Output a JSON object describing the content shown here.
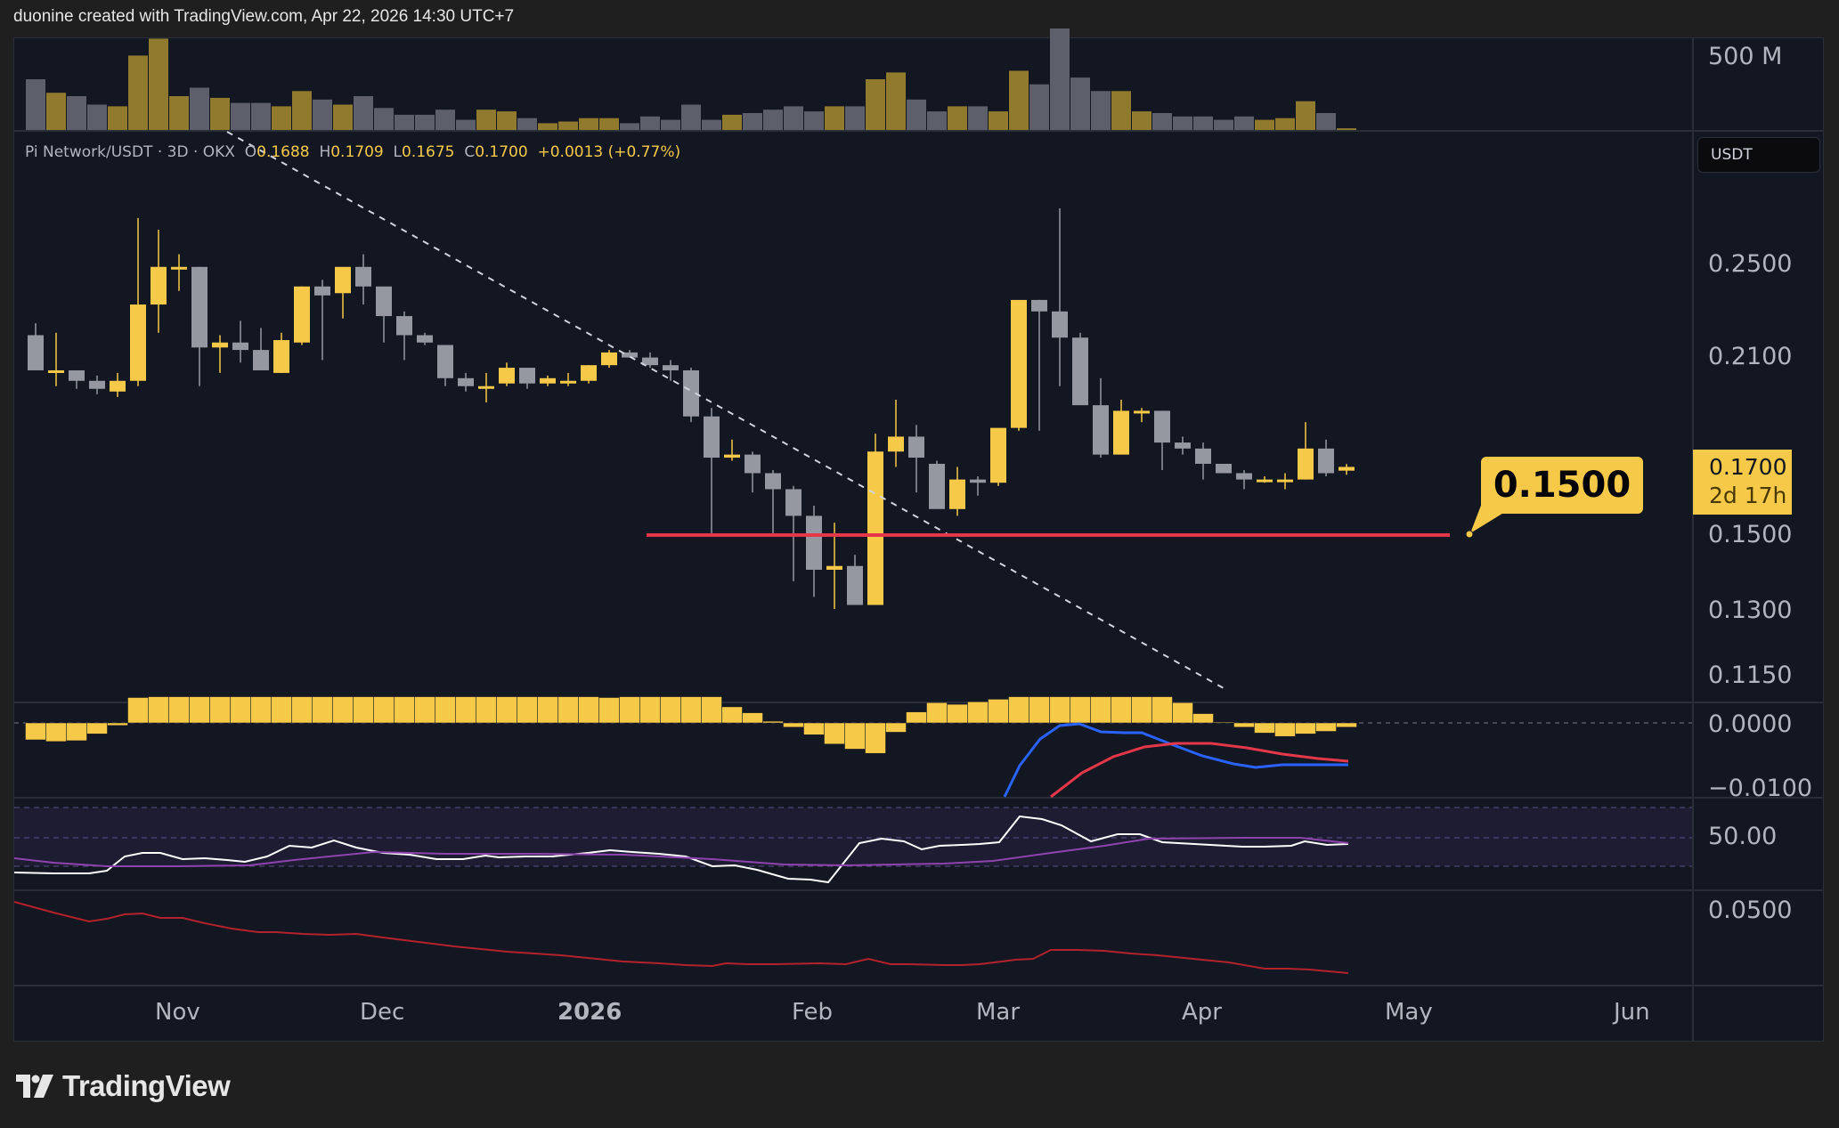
{
  "header": {
    "attribution": "duonine created with TradingView.com, Apr 22, 2026 14:30 UTC+7"
  },
  "legend": {
    "symbol": "Pi Network/USDT · 3D · OKX",
    "open_label": "O",
    "open": "0.1688",
    "high_label": "H",
    "high": "0.1709",
    "low_label": "L",
    "low": "0.1675",
    "close_label": "C",
    "close": "0.1700",
    "change": "+0.0013 (+0.77%)"
  },
  "price_axis": {
    "currency_badge": "USDT",
    "current_price": "0.1700",
    "countdown": "2d 17h",
    "ticks": [
      "0.2500",
      "0.2100",
      "0.1500",
      "0.1300",
      "0.1150"
    ]
  },
  "volume_axis": {
    "ticks": [
      "500 M"
    ]
  },
  "macd_axis": {
    "ticks": [
      "0.0000",
      "−0.0100"
    ]
  },
  "rsi_axis": {
    "ticks": [
      "50.00"
    ]
  },
  "bottom_axis": {
    "ticks": [
      "0.0500"
    ]
  },
  "time_axis": {
    "labels": [
      "Nov",
      "Dec",
      "2026",
      "Feb",
      "Mar",
      "Apr",
      "May",
      "Jun"
    ]
  },
  "annotation": {
    "level_label": "0.1500"
  },
  "footer": {
    "brand": "TradingView"
  },
  "colors": {
    "up": "#f7c948",
    "down": "#9598a1",
    "level_line": "#e5374a",
    "macd": "#2962ff",
    "signal": "#e5374a",
    "rsi": "#ffffff",
    "rsi_ma": "#8e44ad",
    "bottom_line": "#b2222c"
  },
  "chart_data": {
    "type": "candlestick",
    "title": "Pi Network/USDT · 3D · OKX",
    "xlabel": "",
    "ylabel": "USDT",
    "ylim": [
      0.11,
      0.29
    ],
    "y_scale": "log",
    "time_labels": [
      "Nov",
      "Dec",
      "2026",
      "Feb",
      "Mar",
      "Apr",
      "May",
      "Jun"
    ],
    "ohlc_current": {
      "open": 0.1688,
      "high": 0.1709,
      "low": 0.1675,
      "close": 0.17,
      "change": 0.0013,
      "change_pct": 0.77
    },
    "horizontal_levels": [
      {
        "price": 0.15,
        "color": "#e5374a",
        "label": "0.1500"
      }
    ],
    "trendline": {
      "style": "dashed",
      "from_price": 0.285,
      "to_price": 0.116,
      "direction": "descending"
    },
    "candles": [
      [
        0.218,
        0.223,
        0.204,
        0.204
      ],
      [
        0.204,
        0.219,
        0.198,
        0.204
      ],
      [
        0.204,
        0.204,
        0.197,
        0.2
      ],
      [
        0.2,
        0.202,
        0.195,
        0.197
      ],
      [
        0.196,
        0.203,
        0.194,
        0.2
      ],
      [
        0.2,
        0.272,
        0.198,
        0.231
      ],
      [
        0.231,
        0.266,
        0.219,
        0.248
      ],
      [
        0.248,
        0.254,
        0.237,
        0.248
      ],
      [
        0.248,
        0.248,
        0.198,
        0.213
      ],
      [
        0.213,
        0.218,
        0.203,
        0.215
      ],
      [
        0.215,
        0.224,
        0.207,
        0.212
      ],
      [
        0.212,
        0.221,
        0.204,
        0.204
      ],
      [
        0.203,
        0.219,
        0.203,
        0.216
      ],
      [
        0.215,
        0.239,
        0.214,
        0.239
      ],
      [
        0.239,
        0.242,
        0.208,
        0.235
      ],
      [
        0.236,
        0.247,
        0.225,
        0.248
      ],
      [
        0.248,
        0.254,
        0.231,
        0.239
      ],
      [
        0.239,
        0.236,
        0.215,
        0.226
      ],
      [
        0.226,
        0.228,
        0.208,
        0.218
      ],
      [
        0.218,
        0.219,
        0.214,
        0.215
      ],
      [
        0.214,
        0.214,
        0.198,
        0.201
      ],
      [
        0.201,
        0.203,
        0.196,
        0.198
      ],
      [
        0.197,
        0.203,
        0.192,
        0.198
      ],
      [
        0.199,
        0.207,
        0.198,
        0.205
      ],
      [
        0.205,
        0.205,
        0.197,
        0.199
      ],
      [
        0.199,
        0.202,
        0.198,
        0.201
      ],
      [
        0.199,
        0.203,
        0.198,
        0.2
      ],
      [
        0.2,
        0.206,
        0.199,
        0.206
      ],
      [
        0.206,
        0.212,
        0.205,
        0.211
      ],
      [
        0.211,
        0.212,
        0.209,
        0.209
      ],
      [
        0.209,
        0.211,
        0.205,
        0.206
      ],
      [
        0.206,
        0.208,
        0.2,
        0.204
      ],
      [
        0.204,
        0.205,
        0.185,
        0.187
      ],
      [
        0.187,
        0.19,
        0.15,
        0.173
      ],
      [
        0.173,
        0.179,
        0.172,
        0.174
      ],
      [
        0.174,
        0.175,
        0.162,
        0.168
      ],
      [
        0.168,
        0.169,
        0.15,
        0.163
      ],
      [
        0.163,
        0.164,
        0.137,
        0.155
      ],
      [
        0.155,
        0.158,
        0.133,
        0.14
      ],
      [
        0.14,
        0.153,
        0.13,
        0.141
      ],
      [
        0.141,
        0.144,
        0.131,
        0.131
      ],
      [
        0.131,
        0.181,
        0.131,
        0.175
      ],
      [
        0.175,
        0.193,
        0.17,
        0.18
      ],
      [
        0.18,
        0.184,
        0.162,
        0.173
      ],
      [
        0.171,
        0.172,
        0.16,
        0.157
      ],
      [
        0.157,
        0.17,
        0.155,
        0.166
      ],
      [
        0.166,
        0.167,
        0.161,
        0.165
      ],
      [
        0.165,
        0.182,
        0.164,
        0.183
      ],
      [
        0.183,
        0.23,
        0.182,
        0.233
      ],
      [
        0.233,
        0.233,
        0.182,
        0.228
      ],
      [
        0.228,
        0.277,
        0.198,
        0.217
      ],
      [
        0.217,
        0.219,
        0.197,
        0.191
      ],
      [
        0.191,
        0.201,
        0.173,
        0.174
      ],
      [
        0.174,
        0.193,
        0.175,
        0.189
      ],
      [
        0.189,
        0.19,
        0.185,
        0.189
      ],
      [
        0.189,
        0.189,
        0.169,
        0.178
      ],
      [
        0.178,
        0.18,
        0.174,
        0.176
      ],
      [
        0.176,
        0.178,
        0.166,
        0.171
      ],
      [
        0.171,
        0.171,
        0.168,
        0.168
      ],
      [
        0.168,
        0.169,
        0.163,
        0.166
      ],
      [
        0.166,
        0.167,
        0.165,
        0.166
      ],
      [
        0.166,
        0.168,
        0.163,
        0.166
      ],
      [
        0.166,
        0.185,
        0.166,
        0.176
      ],
      [
        0.176,
        0.179,
        0.167,
        0.168
      ],
      [
        0.1688,
        0.1709,
        0.1675,
        0.17
      ]
    ],
    "volume": [
      0.3,
      0.22,
      0.2,
      0.15,
      0.14,
      0.44,
      0.54,
      0.2,
      0.25,
      0.19,
      0.16,
      0.16,
      0.14,
      0.23,
      0.18,
      0.15,
      0.2,
      0.13,
      0.09,
      0.09,
      0.12,
      0.06,
      0.12,
      0.11,
      0.07,
      0.04,
      0.05,
      0.07,
      0.07,
      0.04,
      0.08,
      0.06,
      0.15,
      0.06,
      0.09,
      0.1,
      0.12,
      0.14,
      0.11,
      0.14,
      0.14,
      0.3,
      0.34,
      0.18,
      0.11,
      0.14,
      0.14,
      0.11,
      0.35,
      0.27,
      0.6,
      0.31,
      0.23,
      0.23,
      0.11,
      0.1,
      0.08,
      0.08,
      0.06,
      0.08,
      0.06,
      0.07,
      0.17,
      0.1,
      0.01
    ],
    "volume_axis_tick": "500 M",
    "macd_histogram": [
      -0.002,
      -0.0022,
      -0.0021,
      -0.0013,
      -0.0003,
      0.003,
      0.0031,
      0.0031,
      0.0031,
      0.0031,
      0.0031,
      0.0031,
      0.0031,
      0.0031,
      0.0031,
      0.0031,
      0.0031,
      0.0031,
      0.0031,
      0.0031,
      0.0031,
      0.0031,
      0.0031,
      0.0031,
      0.0031,
      0.0031,
      0.0031,
      0.0031,
      0.003,
      0.0031,
      0.0031,
      0.0031,
      0.0031,
      0.0031,
      0.0019,
      0.0012,
      0.0002,
      -0.0005,
      -0.0014,
      -0.0025,
      -0.0031,
      -0.0036,
      -0.0011,
      0.0013,
      0.0024,
      0.0022,
      0.0025,
      0.0028,
      0.0031,
      0.0031,
      0.0031,
      0.0031,
      0.0031,
      0.0031,
      0.0031,
      0.0031,
      0.0024,
      0.0011,
      0.0001,
      -0.0005,
      -0.0012,
      -0.0016,
      -0.0013,
      -0.001,
      -0.0005
    ],
    "macd_ylim": [
      -0.0105,
      0.0035
    ],
    "rsi_ylim": [
      30,
      70
    ],
    "rsi_axis_tick": "50.00",
    "bottom_axis_tick": "0.0500"
  }
}
